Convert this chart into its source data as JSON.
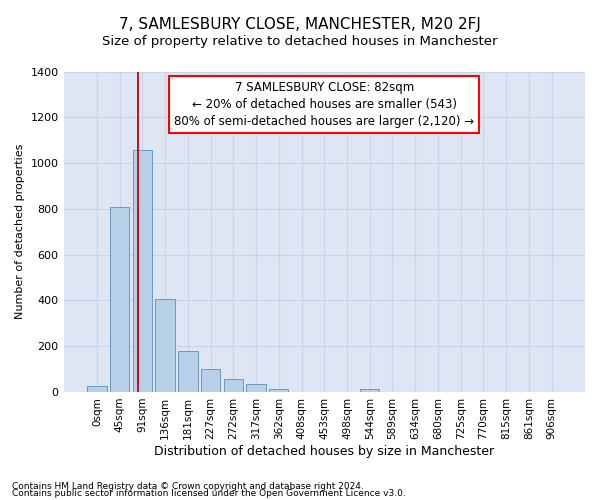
{
  "title": "7, SAMLESBURY CLOSE, MANCHESTER, M20 2FJ",
  "subtitle": "Size of property relative to detached houses in Manchester",
  "xlabel": "Distribution of detached houses by size in Manchester",
  "ylabel": "Number of detached properties",
  "footnote1": "Contains HM Land Registry data © Crown copyright and database right 2024.",
  "footnote2": "Contains public sector information licensed under the Open Government Licence v3.0.",
  "bar_labels": [
    "0sqm",
    "45sqm",
    "91sqm",
    "136sqm",
    "181sqm",
    "227sqm",
    "272sqm",
    "317sqm",
    "362sqm",
    "408sqm",
    "453sqm",
    "498sqm",
    "544sqm",
    "589sqm",
    "634sqm",
    "680sqm",
    "725sqm",
    "770sqm",
    "815sqm",
    "861sqm",
    "906sqm"
  ],
  "bar_values": [
    25,
    810,
    1055,
    405,
    180,
    100,
    55,
    35,
    15,
    0,
    0,
    0,
    15,
    0,
    0,
    0,
    0,
    0,
    0,
    0,
    0
  ],
  "bar_color": "#b8cfe8",
  "bar_edgecolor": "#6699cc",
  "vline_x": 1.82,
  "vline_color": "#cc0000",
  "ylim": [
    0,
    1400
  ],
  "yticks": [
    0,
    200,
    400,
    600,
    800,
    1000,
    1200,
    1400
  ],
  "annotation_text_line1": "7 SAMLESBURY CLOSE: 82sqm",
  "annotation_text_line2": "← 20% of detached houses are smaller (543)",
  "annotation_text_line3": "80% of semi-detached houses are larger (2,120) →",
  "grid_color": "#c8d4e8",
  "bg_color": "#dde6f2",
  "title_fontsize": 11,
  "subtitle_fontsize": 9.5,
  "xlabel_fontsize": 9,
  "ylabel_fontsize": 8,
  "tick_fontsize": 7.5,
  "annotation_fontsize": 8.5,
  "footnote_fontsize": 6.5
}
